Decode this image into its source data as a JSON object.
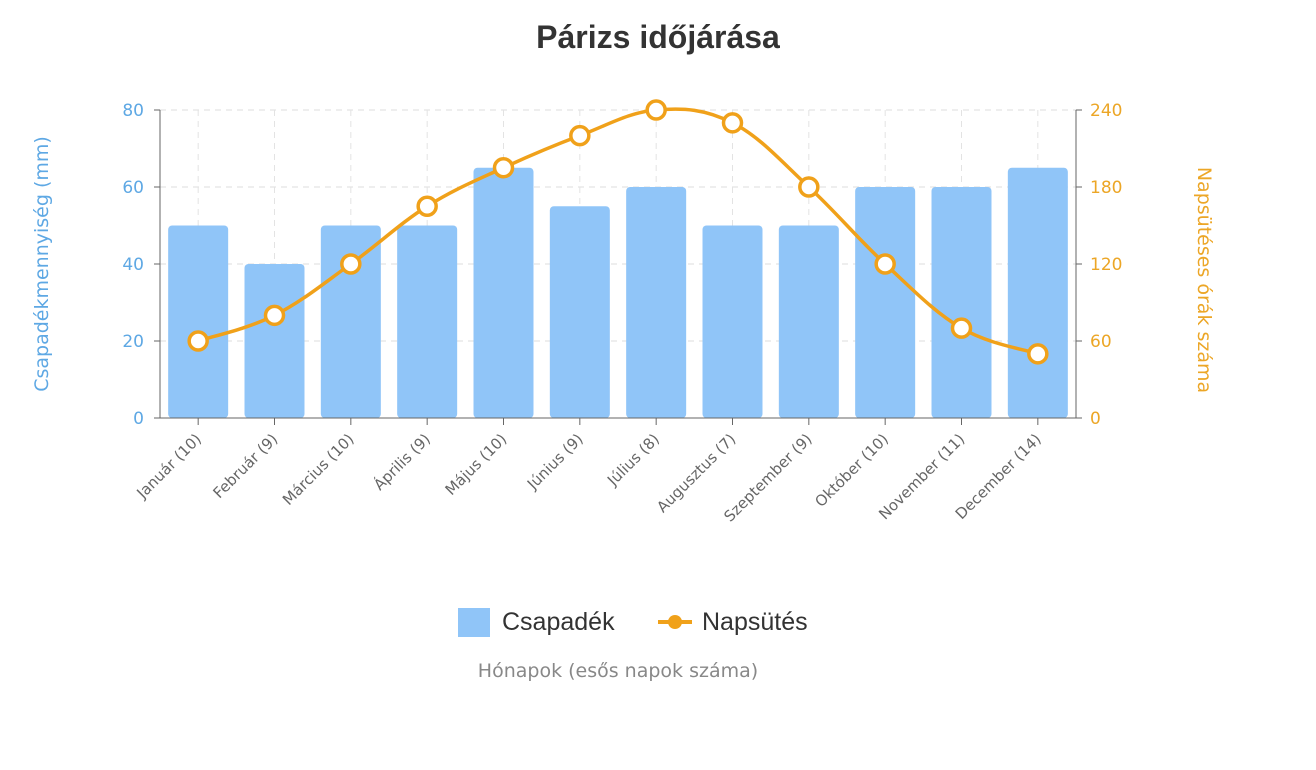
{
  "chart_data": {
    "type": "bar+line",
    "title": "Párizs időjárása",
    "xlabel": "Hónapok (esős napok száma)",
    "ylabel_left": "Csapadékmennyiség (mm)",
    "ylabel_right": "Napsütéses órák száma",
    "categories": [
      "Január (10)",
      "Február (9)",
      "Március (10)",
      "Április (9)",
      "Május (10)",
      "Június (9)",
      "Július (8)",
      "Augusztus (7)",
      "Szeptember (9)",
      "Október (10)",
      "November (11)",
      "December (14)"
    ],
    "ylim_left": [
      0,
      80
    ],
    "yticks_left": [
      "0",
      "20",
      "40",
      "60",
      "80"
    ],
    "ylim_right": [
      0,
      240
    ],
    "yticks_right": [
      "0",
      "60",
      "120",
      "180",
      "240"
    ],
    "grid": true,
    "legend_position": "bottom",
    "series": [
      {
        "name": "Csapadék",
        "type": "bar",
        "axis": "left",
        "color": "#90c5f8",
        "values": [
          50,
          40,
          50,
          50,
          65,
          55,
          60,
          50,
          50,
          60,
          60,
          65
        ]
      },
      {
        "name": "Napsütés",
        "type": "line",
        "axis": "right",
        "color": "#f0a11a",
        "values": [
          60,
          80,
          120,
          165,
          195,
          220,
          240,
          230,
          180,
          120,
          70,
          50
        ]
      }
    ],
    "colors": {
      "left_axis": "#5ea8e4",
      "right_axis": "#eca626"
    }
  }
}
